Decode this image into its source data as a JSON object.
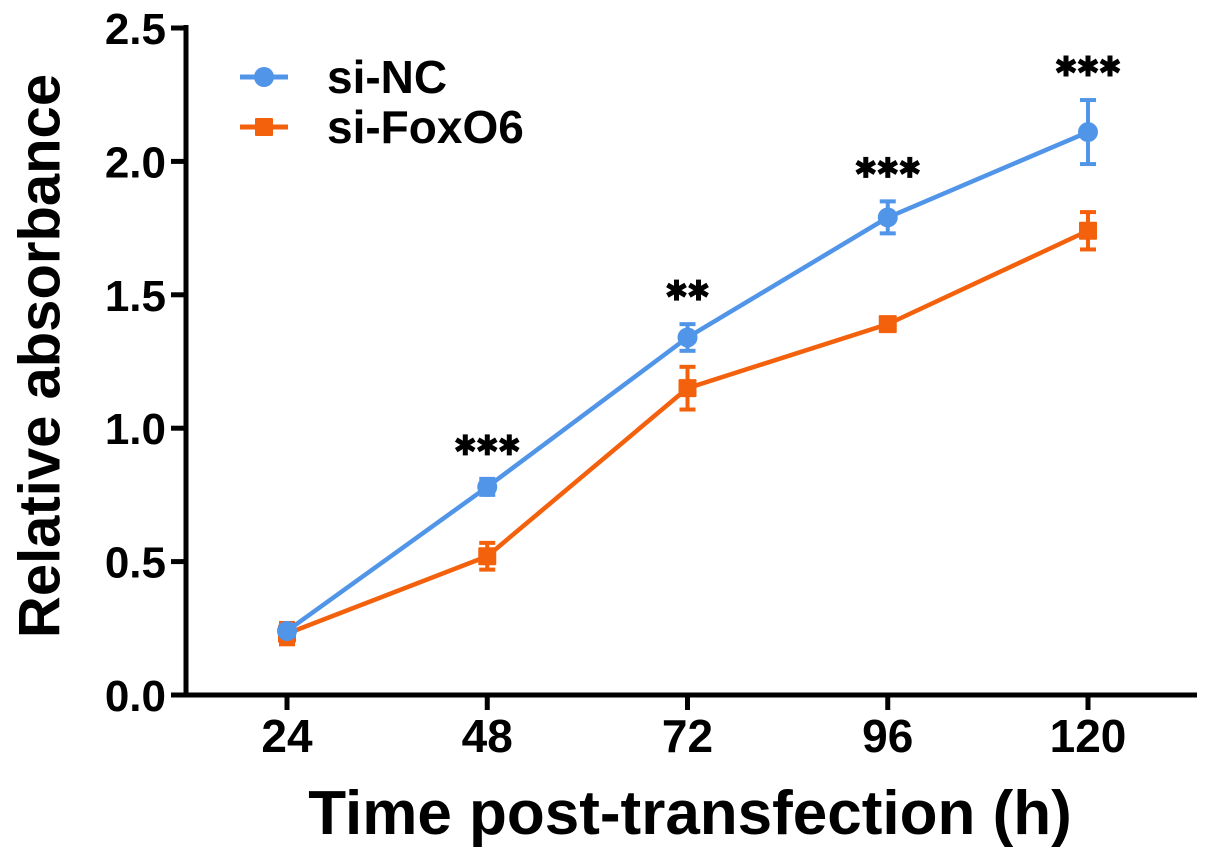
{
  "chart_data": {
    "type": "line",
    "title": "",
    "xlabel": "Time post-transfection (h)",
    "ylabel": "Relative absorbance",
    "x": [
      24,
      48,
      72,
      96,
      120
    ],
    "xticks": [
      "24",
      "48",
      "72",
      "96",
      "120"
    ],
    "yticks": [
      "0.0",
      "0.5",
      "1.0",
      "1.5",
      "2.0",
      "2.5"
    ],
    "ylim": [
      0,
      2.5
    ],
    "grid": false,
    "legend_position": "top-left",
    "axis_color": "#000000",
    "background": "#ffffff",
    "series": [
      {
        "name": "si-NC",
        "color": "#5195E8",
        "marker": "circle",
        "values": [
          0.24,
          0.78,
          1.34,
          1.79,
          2.11
        ],
        "errors": [
          0.02,
          0.03,
          0.05,
          0.06,
          0.12
        ]
      },
      {
        "name": "si-FoxO6",
        "color": "#F4610D",
        "marker": "square",
        "values": [
          0.23,
          0.52,
          1.15,
          1.39,
          1.74
        ],
        "errors": [
          0.04,
          0.05,
          0.08,
          0.02,
          0.07
        ]
      }
    ],
    "annotations": [
      {
        "x": 48,
        "label": "***"
      },
      {
        "x": 72,
        "label": "**"
      },
      {
        "x": 96,
        "label": "***"
      },
      {
        "x": 120,
        "label": "***"
      }
    ]
  }
}
